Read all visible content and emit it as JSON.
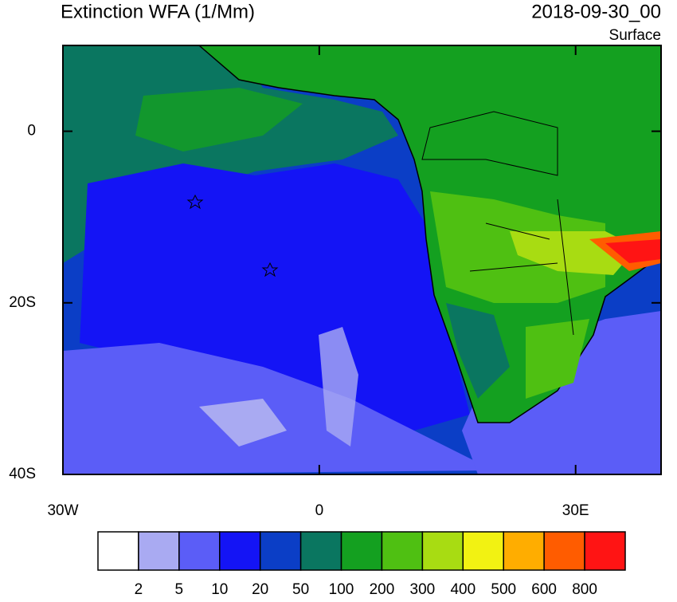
{
  "header": {
    "title": "Extinction WFA (1/Mm)",
    "date": "2018-09-30_00",
    "level": "Surface"
  },
  "axes": {
    "lonlim": [
      -30,
      40
    ],
    "latlim": [
      -40,
      10
    ],
    "xticks": [
      {
        "value": -30,
        "label": "30W"
      },
      0,
      {
        "value": 30,
        "label": "30E"
      }
    ],
    "yticks": [
      0,
      {
        "value": -20,
        "label": "20S"
      },
      {
        "value": -40,
        "label": "40S"
      }
    ]
  },
  "colorbar": {
    "levels": [
      2,
      5,
      10,
      20,
      50,
      100,
      200,
      300,
      400,
      500,
      600,
      800
    ],
    "colors": [
      "#ffffff",
      "#a9aaf2",
      "#5b5df7",
      "#1414f5",
      "#0b3ec6",
      "#0a7660",
      "#14a020",
      "#4fc012",
      "#a8dc12",
      "#f2f212",
      "#ffad00",
      "#ff5c00",
      "#ff1414"
    ]
  }
}
